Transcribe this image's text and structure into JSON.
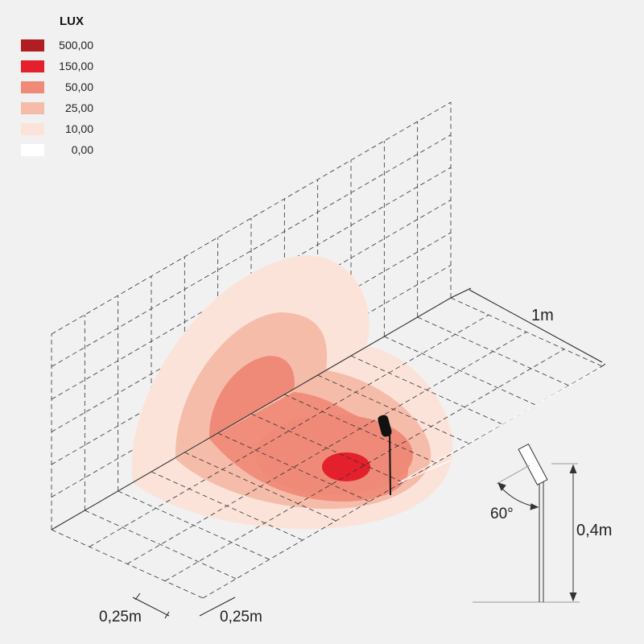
{
  "legend": {
    "title": "LUX",
    "items": [
      {
        "label": "500,00",
        "color": "#b01e22"
      },
      {
        "label": "150,00",
        "color": "#e3202b"
      },
      {
        "label": "50,00",
        "color": "#ef8a78"
      },
      {
        "label": "25,00",
        "color": "#f6bcaa"
      },
      {
        "label": "10,00",
        "color": "#fbe3da"
      },
      {
        "label": "0,00",
        "color": "#ffffff"
      }
    ]
  },
  "dimensions": {
    "depth": "1m",
    "grid_x": "0,25m",
    "grid_y": "0,25m",
    "height": "0,4m",
    "angle": "60°"
  }
}
